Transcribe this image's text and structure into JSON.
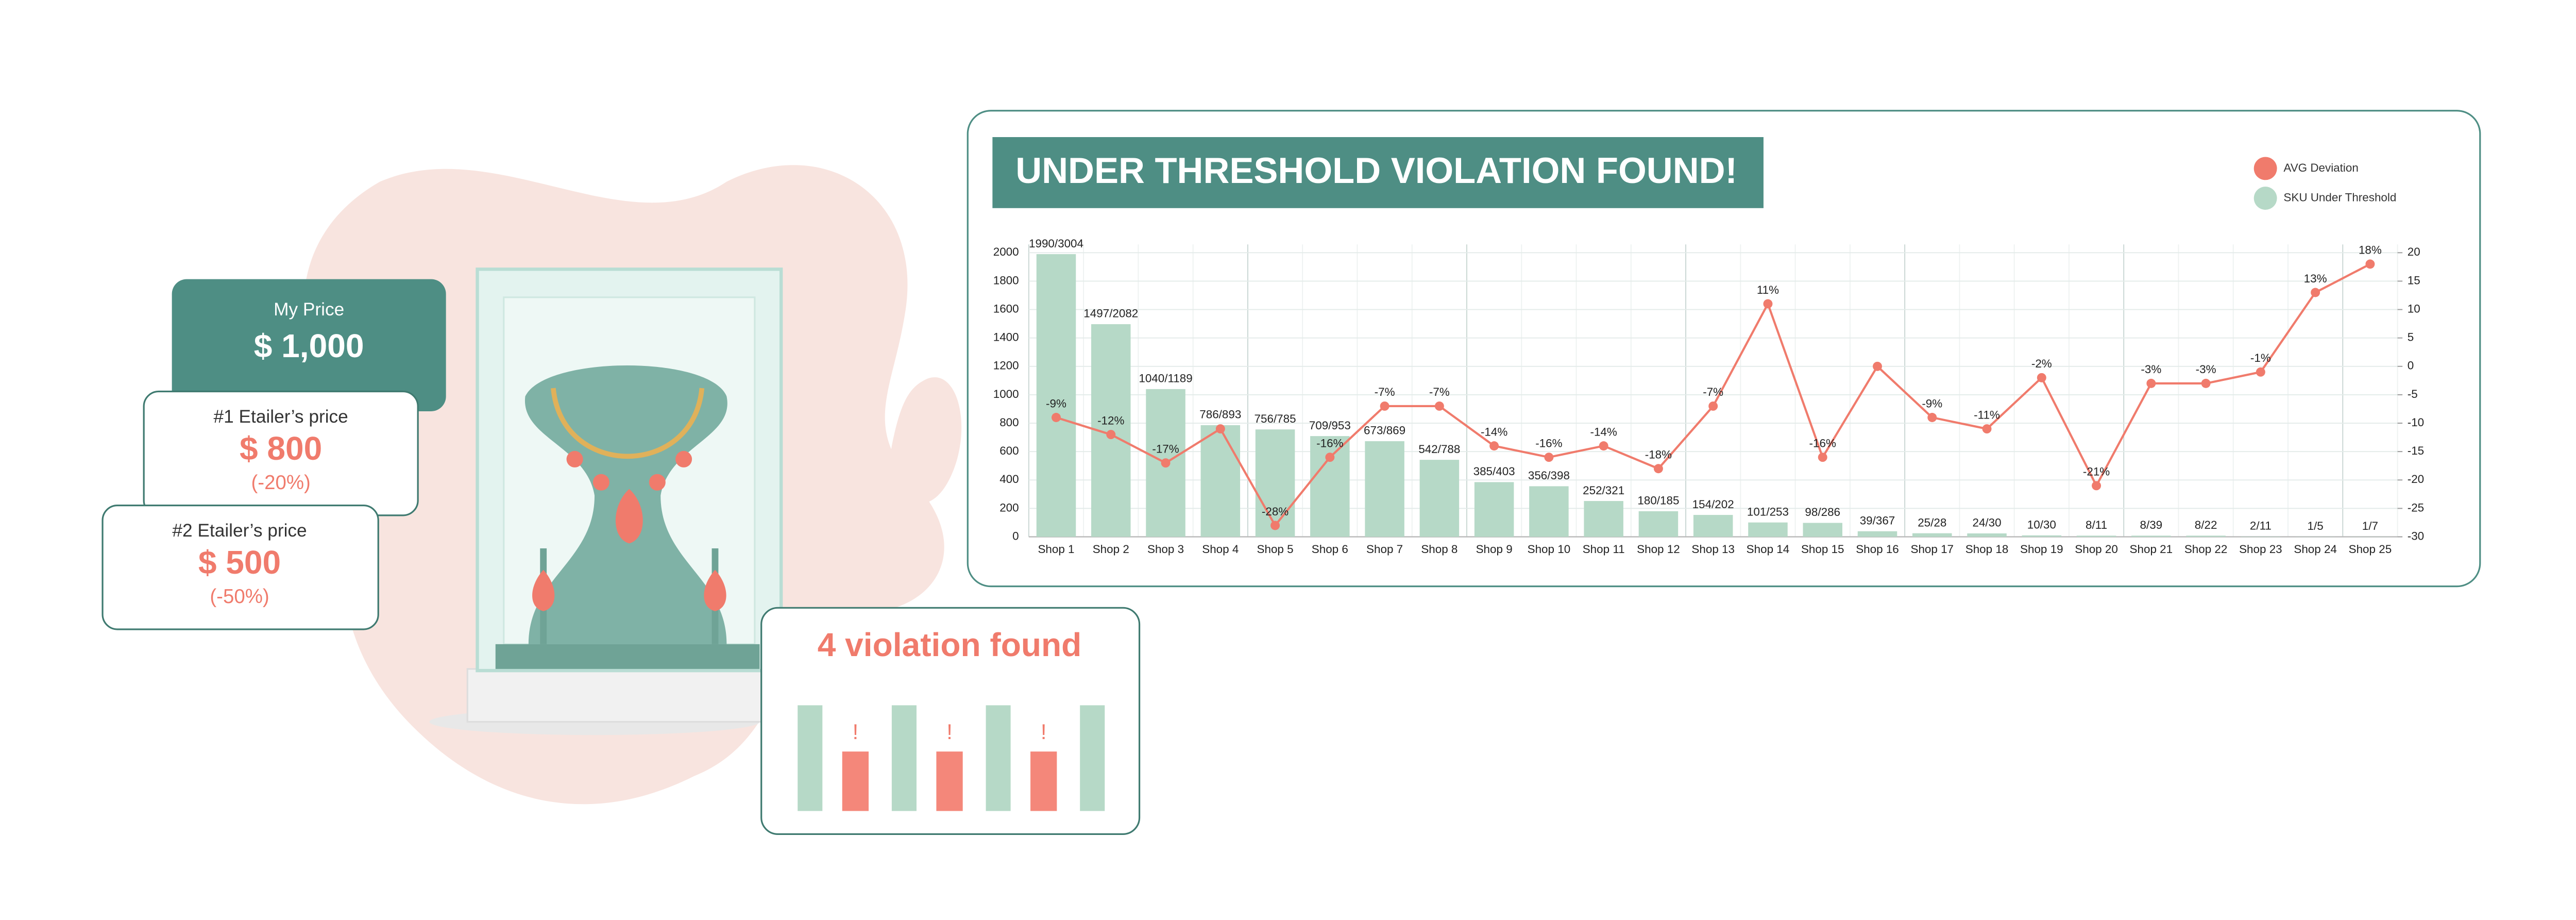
{
  "price_cards": [
    {
      "label": "My Price",
      "price": "$ 1,000"
    },
    {
      "label": "#1 Etailer’s price",
      "price": "$ 800",
      "change": "(-20%)"
    },
    {
      "label": "#2 Etailer’s price",
      "price": "$ 500",
      "change": "(-50%)"
    }
  ],
  "violation_card": {
    "title": "4 violation found",
    "marks": [
      "!",
      "!",
      "!"
    ]
  },
  "chart_data": {
    "type": "bar_line",
    "title": "UNDER THRESHOLD VIOLATION FOUND!",
    "categories": [
      "Shop 1",
      "Shop 2",
      "Shop 3",
      "Shop 4",
      "Shop 5",
      "Shop 6",
      "Shop 7",
      "Shop 8",
      "Shop 9",
      "Shop 10",
      "Shop 11",
      "Shop 12",
      "Shop 13",
      "Shop 14",
      "Shop 15",
      "Shop 16",
      "Shop 17",
      "Shop 18",
      "Shop 19",
      "Shop 20",
      "Shop 21",
      "Shop 22",
      "Shop 23",
      "Shop 24",
      "Shop 25"
    ],
    "series": [
      {
        "name": "SKU Under Threshold",
        "color": "#b6d9c7",
        "axis": "y",
        "values": [
          1990,
          1497,
          1040,
          786,
          756,
          709,
          673,
          542,
          385,
          356,
          252,
          180,
          154,
          101,
          98,
          39,
          25,
          24,
          10,
          8,
          8,
          8,
          2,
          1,
          1
        ],
        "value_labels": [
          "1990/3004",
          "1497/2082",
          "1040/1189",
          "786/893",
          "756/785",
          "709/953",
          "673/869",
          "542/788",
          "385/403",
          "356/398",
          "252/321",
          "180/185",
          "154/202",
          "101/253",
          "98/286",
          "39/367",
          "25/28",
          "24/30",
          "10/30",
          "8/11",
          "8/39",
          "8/22",
          "2/11",
          "1/5",
          "1/7"
        ]
      },
      {
        "name": "AVG Deviation",
        "color": "#f07b6c",
        "axis": "y2",
        "values": [
          -9,
          -12,
          -17,
          -11,
          -28,
          -16,
          -7,
          -7,
          -14,
          -16,
          -14,
          -18,
          -7,
          11,
          -16,
          0,
          -9,
          -11,
          -2,
          -21,
          -3,
          -3,
          -1,
          13,
          18
        ],
        "value_labels": [
          "-9%",
          "-12%",
          "-17%",
          null,
          "-28%",
          "-16%",
          "-7%",
          "-7%",
          "-14%",
          "-16%",
          "-14%",
          "-18%",
          "-7%",
          "11%",
          "-16%",
          null,
          "-9%",
          "-11%",
          "-2%",
          "-21%",
          "-3%",
          "-3%",
          "-1%",
          "13%",
          "18%"
        ]
      }
    ],
    "ylim": [
      0,
      2000
    ],
    "yticks": [
      0,
      200,
      400,
      600,
      800,
      1000,
      1200,
      1400,
      1600,
      1800,
      2000
    ],
    "y2lim": [
      -30,
      20
    ],
    "y2ticks": [
      -30,
      -25,
      -20,
      -15,
      -10,
      -5,
      0,
      5,
      10,
      15,
      20
    ],
    "grid": true,
    "legend": "top-right"
  }
}
